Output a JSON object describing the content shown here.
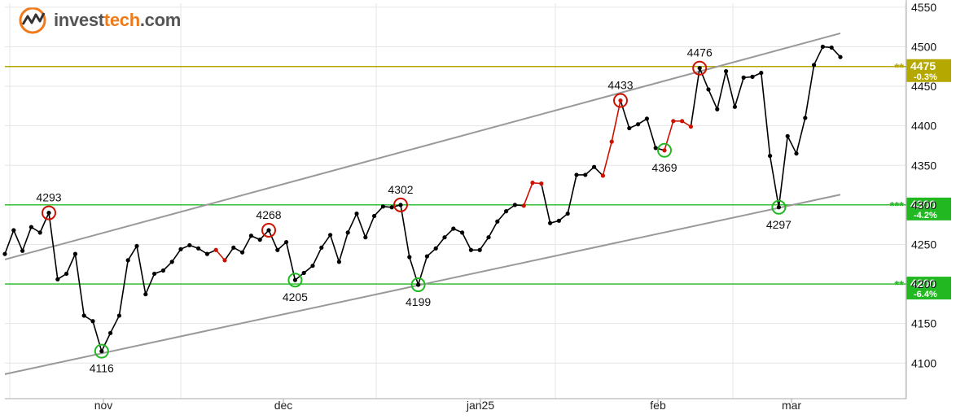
{
  "logo": {
    "text_prefix": "invest",
    "text_brand": "tech",
    "text_suffix": ".com"
  },
  "chart_data": {
    "type": "line",
    "x_ticks": [
      "nov",
      "dec",
      "jan25",
      "feb",
      "mar"
    ],
    "y_ticks": [
      4100,
      4150,
      4200,
      4250,
      4300,
      4350,
      4400,
      4450,
      4500,
      4550
    ],
    "ylim": [
      4055,
      4555
    ],
    "grid": true,
    "series": [
      {
        "values": [
          4238,
          4268,
          4242,
          4272,
          4265,
          4290,
          4206,
          4213,
          4238,
          4160,
          4153,
          4115,
          4138,
          4160,
          4230,
          4248,
          4187,
          4213,
          4217,
          4228,
          4244,
          4249,
          4245,
          4238,
          4243,
          4230,
          4246,
          4240,
          4261,
          4256,
          4268,
          4243,
          4253,
          4205,
          4214,
          4223,
          4246,
          4262,
          4228,
          4265,
          4289,
          4259,
          4286,
          4298,
          4297,
          4300,
          4234,
          4199,
          4235,
          4245,
          4259,
          4270,
          4265,
          4243,
          4243,
          4259,
          4279,
          4292,
          4300,
          4299,
          4328,
          4327,
          4277,
          4280,
          4289,
          4338,
          4338,
          4348,
          4337,
          4380,
          4432,
          4397,
          4402,
          4409,
          4372,
          4369,
          4406,
          4406,
          4399,
          4473,
          4446,
          4421,
          4469,
          4424,
          4461,
          4462,
          4467,
          4362,
          4297,
          4387,
          4365,
          4410,
          4477,
          4500,
          4499,
          4487
        ],
        "red_segments": [
          [
            24,
            25
          ],
          [
            59,
            61
          ],
          [
            68,
            70
          ],
          [
            75,
            78
          ]
        ]
      }
    ],
    "trend_lines": [
      {
        "color": "#999999",
        "points": [
          [
            0,
            4231
          ],
          [
            95,
            4517
          ]
        ]
      },
      {
        "color": "#999999",
        "points": [
          [
            0,
            4086
          ],
          [
            95,
            4313
          ]
        ]
      }
    ],
    "levels": [
      {
        "value": 4475,
        "label": "4475",
        "pct": "-0.3%",
        "color": "#b5a800",
        "stars": "**"
      },
      {
        "value": 4300,
        "label": "4300",
        "pct": "-4.2%",
        "color": "#22b822",
        "stars": "***"
      },
      {
        "value": 4200,
        "label": "4200",
        "pct": "-6.4%",
        "color": "#22b822",
        "stars": "**"
      }
    ],
    "peaks": [
      {
        "i": 5,
        "label": "4293",
        "kind": "high"
      },
      {
        "i": 11,
        "label": "4116",
        "kind": "low"
      },
      {
        "i": 30,
        "label": "4268",
        "kind": "high"
      },
      {
        "i": 33,
        "label": "4205",
        "kind": "low"
      },
      {
        "i": 45,
        "label": "4302",
        "kind": "high"
      },
      {
        "i": 47,
        "label": "4199",
        "kind": "low"
      },
      {
        "i": 70,
        "label": "4433",
        "kind": "high"
      },
      {
        "i": 75,
        "label": "4369",
        "kind": "low"
      },
      {
        "i": 79,
        "label": "4476",
        "kind": "high"
      },
      {
        "i": 88,
        "label": "4297",
        "kind": "low"
      }
    ]
  },
  "colors": {
    "line": "#000000",
    "red": "#cc1100",
    "high_circle": "#cc1100",
    "low_circle": "#22b822",
    "grid": "#e6e6e6",
    "axis": "#aaaaaa"
  }
}
